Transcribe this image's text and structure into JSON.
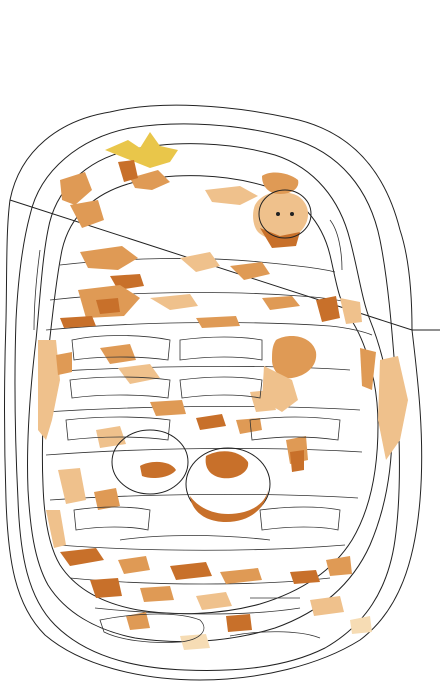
{
  "image": {
    "subject": "posterized-outline-of-woven-basket",
    "colors": {
      "background": "#ffffff",
      "outline": "#222222",
      "dark_brown": "#c8702a",
      "mid_orange": "#df9a55",
      "light_tan": "#efc18c",
      "pale_cream": "#f6dcb4",
      "yellow_tint": "#e9c64a"
    }
  }
}
